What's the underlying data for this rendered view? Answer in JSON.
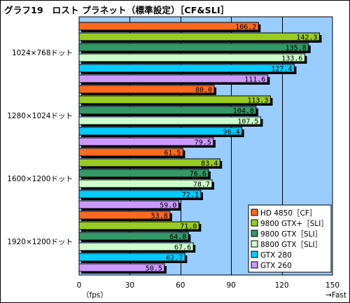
{
  "title": "グラフ19　ロスト プラネット（標準設定）［CF&SLI］",
  "chart_data": {
    "type": "bar",
    "orientation": "horizontal",
    "title": "グラフ19　ロスト プラネット（標準設定）［CF&SLI］",
    "categories": [
      "1024×768ドット",
      "1280×1024ドット",
      "1600×1200ドット",
      "1920×1200ドット"
    ],
    "series": [
      {
        "name": "HD 4850［CF］",
        "color": "#ff6a1f",
        "values": [
          106.2,
          80.0,
          61.5,
          53.8
        ]
      },
      {
        "name": "9800 GTX+［SLI］",
        "color": "#99cc22",
        "values": [
          142.3,
          113.3,
          83.4,
          71.0
        ]
      },
      {
        "name": "9800 GTX［SLI］",
        "color": "#339966",
        "values": [
          135.8,
          104.8,
          76.6,
          64.8
        ]
      },
      {
        "name": "8800 GTX［SLI］",
        "color": "#ccffcc",
        "values": [
          133.6,
          107.5,
          78.7,
          67.6
        ]
      },
      {
        "name": "GTX 280",
        "color": "#00ccff",
        "values": [
          127.4,
          96.4,
          72.1,
          62.7
        ]
      },
      {
        "name": "GTX 260",
        "color": "#cc99ff",
        "values": [
          111.6,
          79.5,
          59.0,
          50.5
        ]
      }
    ],
    "value_labels": [
      [
        "106.2",
        "142.3",
        "135.8",
        "133.6",
        "127.4",
        "111.6"
      ],
      [
        "80.0",
        "113.3",
        "104.8",
        "107.5",
        "96.4",
        "79.5"
      ],
      [
        "61.5",
        "83.4",
        "76.6",
        "78.7",
        "72.1",
        "59.0"
      ],
      [
        "53.8",
        "71.0",
        "64.8",
        "67.6",
        "62.7",
        "50.5"
      ]
    ],
    "xlim": [
      0,
      150
    ],
    "xticks": [
      0,
      30,
      60,
      90,
      120,
      150
    ],
    "xtick_labels": [
      "0",
      "30",
      "60",
      "90",
      "120",
      "150"
    ],
    "xlabel_left": "（fps）",
    "xlabel_right": "→Fast",
    "grid": true,
    "legend_position": "bottom-right",
    "background_color": "#99ccff"
  }
}
